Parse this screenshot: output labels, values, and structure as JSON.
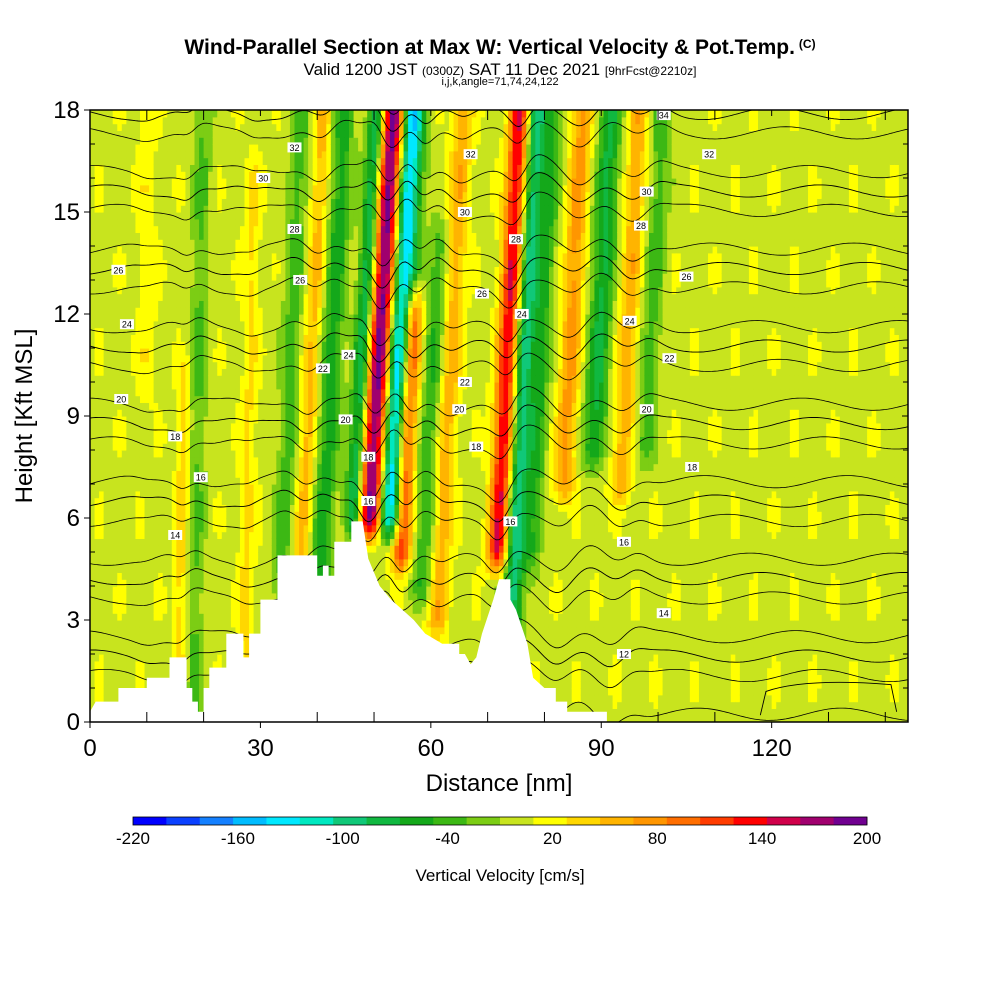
{
  "title": {
    "main": "Wind-Parallel Section at Max W: Vertical Velocity & Pot.Temp.",
    "copyright_mark": "(C)",
    "valid_pre": "Valid 1200 JST",
    "valid_utc": "(0300Z)",
    "valid_date": "SAT 11 Dec 2021",
    "forecast": "[9hrFcst@2210z]",
    "params": "i,j,k,angle=71,74,24,122"
  },
  "chart_data": {
    "type": "heatmap",
    "xlabel": "Distance [nm]",
    "ylabel": "Height [Kft MSL]",
    "xlim": [
      0,
      144
    ],
    "ylim": [
      0,
      18
    ],
    "x_ticks": [
      0,
      30,
      60,
      90,
      120
    ],
    "y_ticks": [
      0,
      3,
      6,
      9,
      12,
      15,
      18
    ],
    "colorbar": {
      "label": "Vertical Velocity [cm/s]",
      "range": [
        -220,
        200
      ],
      "step": 20,
      "tick_labels": [
        -220,
        -160,
        -100,
        -40,
        20,
        80,
        140,
        200
      ],
      "colors": [
        "#0000ff",
        "#0a40ff",
        "#1480ff",
        "#00bcff",
        "#00e8ff",
        "#00e8c0",
        "#10c878",
        "#10b840",
        "#14a81a",
        "#3cb814",
        "#7ccd14",
        "#c8e41e",
        "#ffff00",
        "#ffd700",
        "#ffb400",
        "#ff9600",
        "#ff6e00",
        "#ff3c00",
        "#ff0000",
        "#d0004a",
        "#a0006e",
        "#700090"
      ]
    },
    "velocity_features": [
      {
        "x": 50.5,
        "y_base": 6,
        "y_top": 18,
        "lean": 0.35,
        "w": 2.4,
        "amp": 220
      },
      {
        "x": 47.5,
        "y_base": 6,
        "y_top": 18,
        "lean": 0.35,
        "w": 1.6,
        "amp": -120
      },
      {
        "x": 53.5,
        "y_base": 6,
        "y_top": 18,
        "lean": 0.35,
        "w": 2.2,
        "amp": -190
      },
      {
        "x": 42.0,
        "y_base": 3,
        "y_top": 18,
        "lean": 0.3,
        "w": 2.0,
        "amp": -65
      },
      {
        "x": 38.5,
        "y_base": 3,
        "y_top": 18,
        "lean": 0.3,
        "w": 1.6,
        "amp": 55
      },
      {
        "x": 35.0,
        "y_base": 4,
        "y_top": 18,
        "lean": 0.25,
        "w": 1.8,
        "amp": -45
      },
      {
        "x": 56.0,
        "y_base": 5,
        "y_top": 12,
        "lean": 0.3,
        "w": 1.6,
        "amp": 130
      },
      {
        "x": 60.0,
        "y_base": 4,
        "y_top": 14,
        "lean": 0.3,
        "w": 1.8,
        "amp": -55
      },
      {
        "x": 63.0,
        "y_base": 3,
        "y_top": 18,
        "lean": 0.3,
        "w": 1.8,
        "amp": 60
      },
      {
        "x": 73.0,
        "y_base": 5,
        "y_top": 18,
        "lean": 0.3,
        "w": 1.8,
        "amp": 150
      },
      {
        "x": 76.0,
        "y_base": 2,
        "y_top": 18,
        "lean": 0.3,
        "w": 1.8,
        "amp": -110
      },
      {
        "x": 79.0,
        "y_base": 5,
        "y_top": 18,
        "lean": 0.3,
        "w": 1.6,
        "amp": -55
      },
      {
        "x": 84.0,
        "y_base": 7,
        "y_top": 18,
        "lean": 0.3,
        "w": 1.8,
        "amp": 75
      },
      {
        "x": 89.0,
        "y_base": 8,
        "y_top": 18,
        "lean": 0.3,
        "w": 2.0,
        "amp": -80
      },
      {
        "x": 94.0,
        "y_base": 7,
        "y_top": 18,
        "lean": 0.3,
        "w": 1.8,
        "amp": 60
      },
      {
        "x": 98.0,
        "y_base": 8,
        "y_top": 18,
        "lean": 0.3,
        "w": 1.8,
        "amp": -45
      },
      {
        "x": 19.0,
        "y_base": 0,
        "y_top": 18,
        "lean": 0.1,
        "w": 1.6,
        "amp": -38
      },
      {
        "x": 16.5,
        "y_base": 0,
        "y_top": 10,
        "lean": 0.1,
        "w": 1.2,
        "amp": 40
      },
      {
        "x": 28.0,
        "y_base": 0,
        "y_top": 16,
        "lean": 0.1,
        "w": 1.4,
        "amp": 30
      },
      {
        "x": 10.0,
        "y_base": 10,
        "y_top": 18,
        "lean": 0.0,
        "w": 1.6,
        "amp": 22
      }
    ],
    "terrain": [
      [
        0,
        0.3
      ],
      [
        1,
        0.6
      ],
      [
        5,
        0.6
      ],
      [
        5,
        1.0
      ],
      [
        10,
        1.0
      ],
      [
        10,
        1.3
      ],
      [
        14,
        1.3
      ],
      [
        14,
        1.9
      ],
      [
        17,
        1.9
      ],
      [
        17,
        1.0
      ],
      [
        18,
        1.0
      ],
      [
        18,
        0.6
      ],
      [
        19,
        0.6
      ],
      [
        19,
        0.3
      ],
      [
        20,
        0.3
      ],
      [
        20,
        1.0
      ],
      [
        21,
        1.0
      ],
      [
        21,
        1.6
      ],
      [
        24,
        1.6
      ],
      [
        24,
        2.6
      ],
      [
        27,
        2.6
      ],
      [
        27,
        1.9
      ],
      [
        28,
        1.9
      ],
      [
        28,
        2.6
      ],
      [
        30,
        2.6
      ],
      [
        30,
        3.6
      ],
      [
        33,
        3.6
      ],
      [
        33,
        4.9
      ],
      [
        40,
        4.9
      ],
      [
        40,
        4.3
      ],
      [
        41,
        4.3
      ],
      [
        41,
        4.6
      ],
      [
        42,
        4.6
      ],
      [
        42,
        4.3
      ],
      [
        43,
        4.3
      ],
      [
        43,
        5.3
      ],
      [
        46,
        5.3
      ],
      [
        46,
        5.9
      ],
      [
        48,
        5.9
      ],
      [
        49,
        4.8
      ],
      [
        51,
        4.0
      ],
      [
        53,
        3.6
      ],
      [
        55,
        3.3
      ],
      [
        57,
        3.0
      ],
      [
        59,
        2.6
      ],
      [
        62,
        2.3
      ],
      [
        65,
        2.3
      ],
      [
        65,
        2.0
      ],
      [
        66,
        2.0
      ],
      [
        67,
        1.7
      ],
      [
        68,
        1.9
      ],
      [
        69,
        2.6
      ],
      [
        71,
        3.6
      ],
      [
        72,
        4.2
      ],
      [
        74,
        4.2
      ],
      [
        74,
        3.6
      ],
      [
        75,
        3.3
      ],
      [
        77,
        2.3
      ],
      [
        78,
        1.3
      ],
      [
        80,
        1.0
      ],
      [
        82,
        1.0
      ],
      [
        82,
        0.6
      ],
      [
        84,
        0.6
      ],
      [
        84,
        0.3
      ],
      [
        91,
        0.3
      ],
      [
        91,
        0.0
      ]
    ],
    "theta_levels": [
      12,
      14,
      16,
      18,
      20,
      22,
      24,
      26,
      28,
      30,
      32,
      34
    ],
    "theta_contour_labels": [
      {
        "text": "34",
        "x": 101,
        "y": 17.85
      },
      {
        "text": "32",
        "x": 36,
        "y": 16.9
      },
      {
        "text": "32",
        "x": 67,
        "y": 16.7
      },
      {
        "text": "32",
        "x": 109,
        "y": 16.7
      },
      {
        "text": "30",
        "x": 30.5,
        "y": 16.0
      },
      {
        "text": "30",
        "x": 66,
        "y": 15.0
      },
      {
        "text": "30",
        "x": 98,
        "y": 15.6
      },
      {
        "text": "28",
        "x": 36,
        "y": 14.5
      },
      {
        "text": "28",
        "x": 75,
        "y": 14.2
      },
      {
        "text": "28",
        "x": 97,
        "y": 14.6
      },
      {
        "text": "26",
        "x": 5,
        "y": 13.3
      },
      {
        "text": "26",
        "x": 37,
        "y": 13.0
      },
      {
        "text": "26",
        "x": 69,
        "y": 12.6
      },
      {
        "text": "26",
        "x": 105,
        "y": 13.1
      },
      {
        "text": "24",
        "x": 6.5,
        "y": 11.7
      },
      {
        "text": "24",
        "x": 45.5,
        "y": 10.8
      },
      {
        "text": "24",
        "x": 76,
        "y": 12.0
      },
      {
        "text": "24",
        "x": 95,
        "y": 11.8
      },
      {
        "text": "22",
        "x": 41,
        "y": 10.4
      },
      {
        "text": "22",
        "x": 66,
        "y": 10.0
      },
      {
        "text": "22",
        "x": 102,
        "y": 10.7
      },
      {
        "text": "20",
        "x": 5.5,
        "y": 9.5
      },
      {
        "text": "20",
        "x": 45,
        "y": 8.9
      },
      {
        "text": "20",
        "x": 65,
        "y": 9.2
      },
      {
        "text": "20",
        "x": 98,
        "y": 9.2
      },
      {
        "text": "18",
        "x": 15,
        "y": 8.4
      },
      {
        "text": "18",
        "x": 49,
        "y": 7.8
      },
      {
        "text": "18",
        "x": 68,
        "y": 8.1
      },
      {
        "text": "18",
        "x": 106,
        "y": 7.5
      },
      {
        "text": "16",
        "x": 19.5,
        "y": 7.2
      },
      {
        "text": "16",
        "x": 49,
        "y": 6.5
      },
      {
        "text": "16",
        "x": 74,
        "y": 5.9
      },
      {
        "text": "16",
        "x": 94,
        "y": 5.3
      },
      {
        "text": "14",
        "x": 15,
        "y": 5.5
      },
      {
        "text": "14",
        "x": 101,
        "y": 3.2
      },
      {
        "text": "12",
        "x": 94,
        "y": 2.0
      }
    ]
  }
}
